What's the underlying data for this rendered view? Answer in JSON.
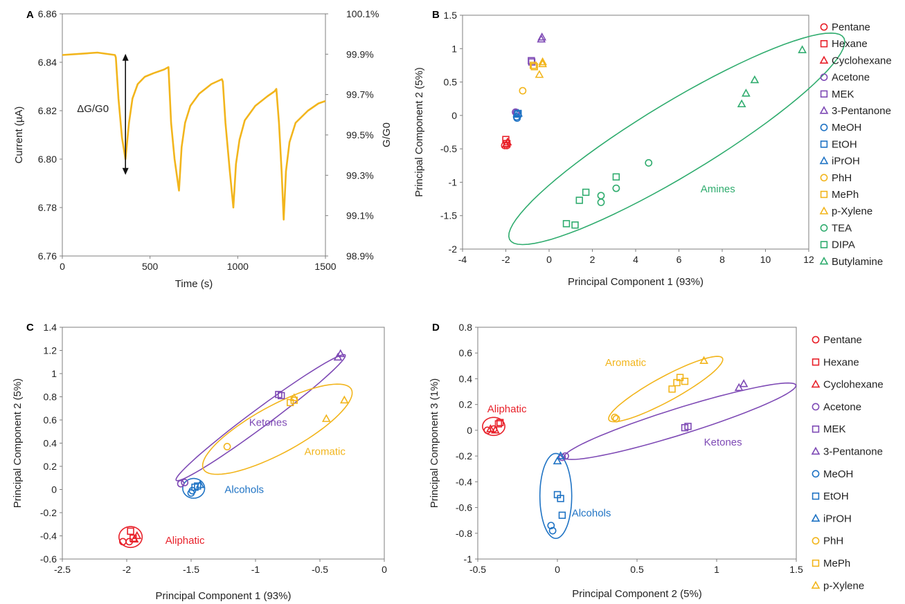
{
  "species": [
    {
      "name": "Pentane",
      "color": "#e8212a",
      "marker": "circle"
    },
    {
      "name": "Hexane",
      "color": "#e8212a",
      "marker": "square"
    },
    {
      "name": "Cyclohexane",
      "color": "#e8212a",
      "marker": "triangle"
    },
    {
      "name": "Acetone",
      "color": "#7e4ab5",
      "marker": "circle"
    },
    {
      "name": "MEK",
      "color": "#7e4ab5",
      "marker": "square"
    },
    {
      "name": "3-Pentanone",
      "color": "#7e4ab5",
      "marker": "triangle"
    },
    {
      "name": "MeOH",
      "color": "#1f73c4",
      "marker": "circle"
    },
    {
      "name": "EtOH",
      "color": "#1f73c4",
      "marker": "square"
    },
    {
      "name": "iPrOH",
      "color": "#1f73c4",
      "marker": "triangle"
    },
    {
      "name": "PhH",
      "color": "#f2b51c",
      "marker": "circle"
    },
    {
      "name": "MePh",
      "color": "#f2b51c",
      "marker": "square"
    },
    {
      "name": "p-Xylene",
      "color": "#f2b51c",
      "marker": "triangle"
    },
    {
      "name": "TEA",
      "color": "#2fac6e",
      "marker": "circle"
    },
    {
      "name": "DIPA",
      "color": "#2fac6e",
      "marker": "square"
    },
    {
      "name": "Butylamine",
      "color": "#2fac6e",
      "marker": "triangle"
    }
  ],
  "chart_data": [
    {
      "panel": "A",
      "type": "line",
      "xlabel": "Time (s)",
      "ylabel": "Current (µA)",
      "y2label": "G/G0",
      "xlim": [
        0,
        1500
      ],
      "ylim": [
        6.76,
        6.86
      ],
      "xticks": [
        0,
        500,
        1000,
        1500
      ],
      "yticks": [
        6.76,
        6.78,
        6.8,
        6.82,
        6.84,
        6.86
      ],
      "y2ticks": [
        "98.9%",
        "99.1%",
        "99.3%",
        "99.5%",
        "99.7%",
        "99.9%",
        "100.1%"
      ],
      "grid": false,
      "color": "#f2b51c",
      "annotation": "ΔG/G0",
      "annotation_arrow": {
        "x": 360,
        "y_top": 6.8435,
        "y_bottom": 6.7935
      },
      "series": [
        {
          "x": [
            0,
            100,
            200,
            300,
            305,
            320,
            340,
            360,
            380,
            400,
            430,
            470,
            520,
            580,
            605,
            620,
            640,
            665,
            680,
            700,
            730,
            780,
            850,
            910,
            915,
            930,
            955,
            975,
            990,
            1010,
            1040,
            1100,
            1170,
            1210,
            1220,
            1235,
            1250,
            1262,
            1275,
            1295,
            1330,
            1400,
            1460,
            1500
          ],
          "y": [
            6.843,
            6.8435,
            6.844,
            6.843,
            6.842,
            6.825,
            6.809,
            6.8,
            6.815,
            6.825,
            6.831,
            6.834,
            6.8355,
            6.837,
            6.838,
            6.815,
            6.8,
            6.787,
            6.805,
            6.815,
            6.822,
            6.827,
            6.831,
            6.833,
            6.832,
            6.815,
            6.795,
            6.78,
            6.798,
            6.808,
            6.816,
            6.822,
            6.826,
            6.828,
            6.829,
            6.815,
            6.795,
            6.775,
            6.795,
            6.807,
            6.815,
            6.82,
            6.823,
            6.824
          ]
        }
      ]
    },
    {
      "panel": "B",
      "type": "scatter",
      "xlabel": "Principal Component 1 (93%)",
      "ylabel": "Principal Component 2 (5%)",
      "xlim": [
        -4,
        12
      ],
      "ylim": [
        -2,
        1.5
      ],
      "xticks": [
        -4,
        -2,
        0,
        2,
        4,
        6,
        8,
        10,
        12
      ],
      "yticks": [
        -2,
        -1.5,
        -1,
        -0.5,
        0,
        0.5,
        1,
        1.5
      ],
      "grid": false,
      "series": [
        {
          "name": "Pentane",
          "x": [
            -2.05,
            -1.95
          ],
          "y": [
            -0.45,
            -0.45
          ]
        },
        {
          "name": "Hexane",
          "x": [
            -2.0,
            -1.95
          ],
          "y": [
            -0.36,
            -0.42
          ]
        },
        {
          "name": "Cyclohexane",
          "x": [
            -1.98,
            -1.92
          ],
          "y": [
            -0.43,
            -0.4
          ]
        },
        {
          "name": "Acetone",
          "x": [
            -1.55,
            -1.5
          ],
          "y": [
            0.05,
            0.04
          ]
        },
        {
          "name": "MEK",
          "x": [
            -0.82,
            -0.8
          ],
          "y": [
            0.82,
            0.8
          ]
        },
        {
          "name": "3-Pentanone",
          "x": [
            -0.36,
            -0.33
          ],
          "y": [
            1.14,
            1.17
          ]
        },
        {
          "name": "MeOH",
          "x": [
            -1.5,
            -1.48
          ],
          "y": [
            -0.02,
            -0.04
          ]
        },
        {
          "name": "EtOH",
          "x": [
            -1.45,
            -1.43
          ],
          "y": [
            0.02,
            0.03
          ]
        },
        {
          "name": "iPrOH",
          "x": [
            -1.42
          ],
          "y": [
            0.03
          ]
        },
        {
          "name": "PhH",
          "x": [
            -1.22
          ],
          "y": [
            0.37
          ]
        },
        {
          "name": "MePh",
          "x": [
            -0.73,
            -0.68
          ],
          "y": [
            0.75,
            0.73
          ]
        },
        {
          "name": "p-Xylene",
          "x": [
            -0.45,
            -0.3,
            -0.3
          ],
          "y": [
            0.61,
            0.77,
            0.8
          ]
        },
        {
          "name": "TEA",
          "x": [
            2.4,
            2.4,
            3.1,
            4.6
          ],
          "y": [
            -1.2,
            -1.3,
            -1.09,
            -0.71
          ]
        },
        {
          "name": "DIPA",
          "x": [
            0.8,
            1.2,
            1.4,
            1.7,
            3.1
          ],
          "y": [
            -1.62,
            -1.64,
            -1.27,
            -1.15,
            -0.92
          ]
        },
        {
          "name": "Butylamine",
          "x": [
            8.9,
            9.1,
            9.5,
            11.7
          ],
          "y": [
            0.17,
            0.33,
            0.53,
            0.98
          ]
        }
      ],
      "ellipses": [
        {
          "label": "Amines",
          "color": "#2fac6e",
          "cx": 5.9,
          "cy": -0.35,
          "rx": 7.9,
          "ry": 0.62,
          "angle": 0.186,
          "label_x": 7.0,
          "label_y": -1.15
        }
      ]
    },
    {
      "panel": "C",
      "type": "scatter",
      "xlabel": "Principal Component 1 (93%)",
      "ylabel": "Principal Component 2 (5%)",
      "xlim": [
        -2.5,
        0
      ],
      "ylim": [
        -0.6,
        1.4
      ],
      "xticks": [
        -2.5,
        -2,
        -1.5,
        -1,
        -0.5,
        0
      ],
      "yticks": [
        -0.6,
        -0.4,
        -0.2,
        0,
        0.2,
        0.4,
        0.6,
        0.8,
        1,
        1.2,
        1.4
      ],
      "grid": false,
      "series": [
        {
          "name": "Pentane",
          "x": [
            -2.03,
            -1.98
          ],
          "y": [
            -0.45,
            -0.45
          ]
        },
        {
          "name": "Hexane",
          "x": [
            -1.97,
            -1.95
          ],
          "y": [
            -0.36,
            -0.42
          ]
        },
        {
          "name": "Cyclohexane",
          "x": [
            -1.94,
            -1.92
          ],
          "y": [
            -0.43,
            -0.4
          ]
        },
        {
          "name": "Acetone",
          "x": [
            -1.58,
            -1.55
          ],
          "y": [
            0.05,
            0.06
          ]
        },
        {
          "name": "MEK",
          "x": [
            -0.82,
            -0.8
          ],
          "y": [
            0.82,
            0.81
          ]
        },
        {
          "name": "3-Pentanone",
          "x": [
            -0.36,
            -0.34
          ],
          "y": [
            1.14,
            1.17
          ]
        },
        {
          "name": "MeOH",
          "x": [
            -1.5,
            -1.49
          ],
          "y": [
            -0.03,
            -0.01
          ]
        },
        {
          "name": "EtOH",
          "x": [
            -1.47,
            -1.45
          ],
          "y": [
            0.02,
            0.03
          ]
        },
        {
          "name": "iPrOH",
          "x": [
            -1.43
          ],
          "y": [
            0.04
          ]
        },
        {
          "name": "PhH",
          "x": [
            -1.22
          ],
          "y": [
            0.37
          ]
        },
        {
          "name": "MePh",
          "x": [
            -0.73,
            -0.7
          ],
          "y": [
            0.75,
            0.77
          ]
        },
        {
          "name": "p-Xylene",
          "x": [
            -0.45,
            -0.31,
            -0.7
          ],
          "y": [
            0.61,
            0.77,
            0.79
          ]
        }
      ],
      "ellipses": [
        {
          "label": "Ketones",
          "color": "#7e4ab5",
          "cx": -0.96,
          "cy": 0.62,
          "rx": 0.85,
          "ry": 0.075,
          "angle": 0.69,
          "label_x": -1.05,
          "label_y": 0.55
        },
        {
          "label": "Aromatic",
          "color": "#f2b51c",
          "cx": -0.83,
          "cy": 0.52,
          "rx": 0.67,
          "ry": 0.2,
          "angle": 0.55,
          "label_x": -0.62,
          "label_y": 0.3
        },
        {
          "label": "Alcohols",
          "color": "#1f73c4",
          "cx": -1.48,
          "cy": 0.01,
          "rx": 0.085,
          "ry": 0.085,
          "angle": 0,
          "label_x": -1.24,
          "label_y": -0.03
        },
        {
          "label": "Aliphatic",
          "color": "#e8212a",
          "cx": -1.97,
          "cy": -0.41,
          "rx": 0.09,
          "ry": 0.09,
          "angle": 0,
          "label_x": -1.7,
          "label_y": -0.47
        }
      ]
    },
    {
      "panel": "D",
      "type": "scatter",
      "xlabel": "Principal Component 2 (5%)",
      "ylabel": "Principal Component 3 (1%)",
      "xlim": [
        -0.5,
        1.5
      ],
      "ylim": [
        -1,
        0.8
      ],
      "xticks": [
        -0.5,
        0,
        0.5,
        1,
        1.5
      ],
      "yticks": [
        -1,
        -0.8,
        -0.6,
        -0.4,
        -0.2,
        0,
        0.2,
        0.4,
        0.6,
        0.8
      ],
      "grid": false,
      "series": [
        {
          "name": "Pentane",
          "x": [
            -0.44,
            -0.4
          ],
          "y": [
            0.0,
            0.01
          ]
        },
        {
          "name": "Hexane",
          "x": [
            -0.37,
            -0.36
          ],
          "y": [
            0.05,
            0.06
          ]
        },
        {
          "name": "Cyclohexane",
          "x": [
            -0.42,
            -0.39
          ],
          "y": [
            0.01,
            0.0
          ]
        },
        {
          "name": "Acetone",
          "x": [
            0.05,
            0.03
          ],
          "y": [
            -0.2,
            -0.21
          ]
        },
        {
          "name": "MEK",
          "x": [
            0.8,
            0.82
          ],
          "y": [
            0.02,
            0.03
          ]
        },
        {
          "name": "3-Pentanone",
          "x": [
            1.14,
            1.17
          ],
          "y": [
            0.33,
            0.36
          ]
        },
        {
          "name": "MeOH",
          "x": [
            -0.04,
            -0.03
          ],
          "y": [
            -0.74,
            -0.78
          ]
        },
        {
          "name": "EtOH",
          "x": [
            0.0,
            0.02,
            0.03
          ],
          "y": [
            -0.5,
            -0.53,
            -0.66
          ]
        },
        {
          "name": "iPrOH",
          "x": [
            0.0,
            0.02
          ],
          "y": [
            -0.24,
            -0.2
          ]
        },
        {
          "name": "PhH",
          "x": [
            0.36,
            0.37
          ],
          "y": [
            0.1,
            0.09
          ]
        },
        {
          "name": "MePh",
          "x": [
            0.72,
            0.75,
            0.77,
            0.8
          ],
          "y": [
            0.32,
            0.37,
            0.41,
            0.38
          ]
        },
        {
          "name": "p-Xylene",
          "x": [
            0.92
          ],
          "y": [
            0.54
          ]
        }
      ],
      "ellipses": [
        {
          "label": "Aromatic",
          "color": "#f2b51c",
          "cx": 0.68,
          "cy": 0.32,
          "rx": 0.43,
          "ry": 0.09,
          "angle": 0.6,
          "label_x": 0.3,
          "label_y": 0.5
        },
        {
          "label": "Ketones",
          "color": "#7e4ab5",
          "cx": 0.77,
          "cy": 0.07,
          "rx": 0.78,
          "ry": 0.1,
          "angle": 0.37,
          "label_x": 0.92,
          "label_y": -0.12
        },
        {
          "label": "Alcohols",
          "color": "#1f73c4",
          "cx": -0.01,
          "cy": -0.51,
          "rx": 0.1,
          "ry": 0.33,
          "angle": 0.0,
          "label_x": 0.09,
          "label_y": -0.67
        },
        {
          "label": "Aliphatic",
          "color": "#e8212a",
          "cx": -0.4,
          "cy": 0.03,
          "rx": 0.07,
          "ry": 0.07,
          "angle": 0,
          "label_x": -0.44,
          "label_y": 0.14
        }
      ]
    }
  ],
  "panels": {
    "A": {
      "letter": "A"
    },
    "B": {
      "letter": "B"
    },
    "C": {
      "letter": "C"
    },
    "D": {
      "letter": "D"
    }
  }
}
